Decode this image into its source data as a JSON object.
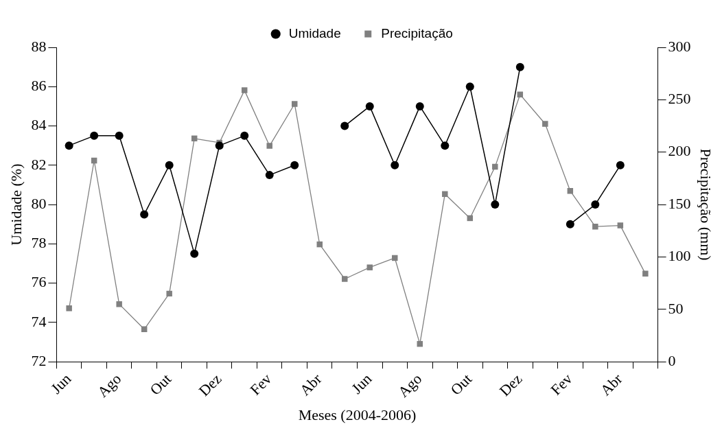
{
  "chart_data": {
    "type": "line",
    "xlabel": "Meses (2004-2006)",
    "ylabel": "Umidade (%)",
    "y2label": "Precipitação (mm)",
    "categories": [
      "Jun",
      null,
      "Ago",
      null,
      "Out",
      null,
      "Dez",
      null,
      "Fev",
      null,
      "Abr",
      null,
      "Jun",
      null,
      "Ago",
      null,
      "Out",
      null,
      "Dez",
      null,
      "Fev",
      null,
      "Abr",
      null
    ],
    "series": [
      {
        "name": "Umidade",
        "color": "#000000",
        "marker": "circle",
        "values": [
          83,
          83.5,
          83.5,
          79.5,
          82,
          77.5,
          83,
          83.5,
          81.5,
          82,
          null,
          84,
          85,
          82,
          85,
          83,
          86,
          80,
          87,
          null,
          79,
          80,
          82,
          null
        ]
      },
      {
        "name": "Precipitação",
        "color": "#808080",
        "marker": "square",
        "axis": "y2",
        "values": [
          51,
          192,
          55,
          31,
          65,
          213,
          209,
          259,
          206,
          246,
          112,
          79,
          90,
          99,
          17,
          160,
          137,
          186,
          255,
          227,
          163,
          129,
          130,
          84
        ]
      }
    ],
    "ylim": [
      72,
      88
    ],
    "yticks": [
      72,
      74,
      76,
      78,
      80,
      82,
      84,
      86,
      88
    ],
    "y2lim": [
      0,
      300
    ],
    "y2ticks": [
      0,
      50,
      100,
      150,
      200,
      250,
      300
    ],
    "grid": false,
    "legend": "top",
    "line_style": "solid"
  }
}
